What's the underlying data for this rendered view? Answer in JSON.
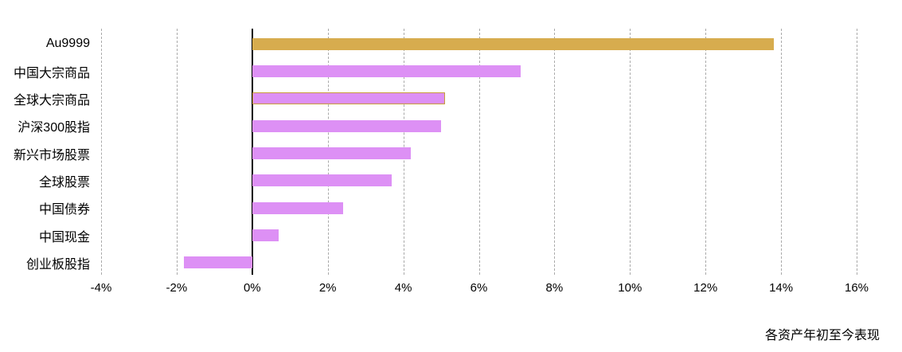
{
  "chart_data": {
    "type": "bar",
    "orientation": "horizontal",
    "title": "",
    "caption": "各资产年初至今表现",
    "categories": [
      "Au9999",
      "中国大宗商品",
      "全球大宗商品",
      "沪深300股指",
      "新兴市场股票",
      "全球股票",
      "中国债券",
      "中国现金",
      "创业板股指"
    ],
    "values": [
      13.8,
      7.1,
      5.1,
      5.0,
      4.2,
      3.7,
      2.4,
      0.7,
      -1.8
    ],
    "styles": [
      "gold",
      "purple",
      "purple-gold-outline",
      "purple",
      "purple",
      "purple",
      "purple",
      "purple",
      "purple"
    ],
    "xlabel": "",
    "ylabel": "",
    "axis": {
      "min": -4,
      "max": 16,
      "step": 2,
      "tick_suffix": "%"
    },
    "grid": "vertical-dashed",
    "zero_line": true,
    "legend": "none",
    "colors": {
      "gold": "#D7AC4E",
      "purple": "#DD90F5",
      "gold_outline": "#C89B3C",
      "gridline": "#A9A9A9",
      "zero_line": "#000000",
      "text": "#000000",
      "background": "#FFFFFF"
    }
  }
}
